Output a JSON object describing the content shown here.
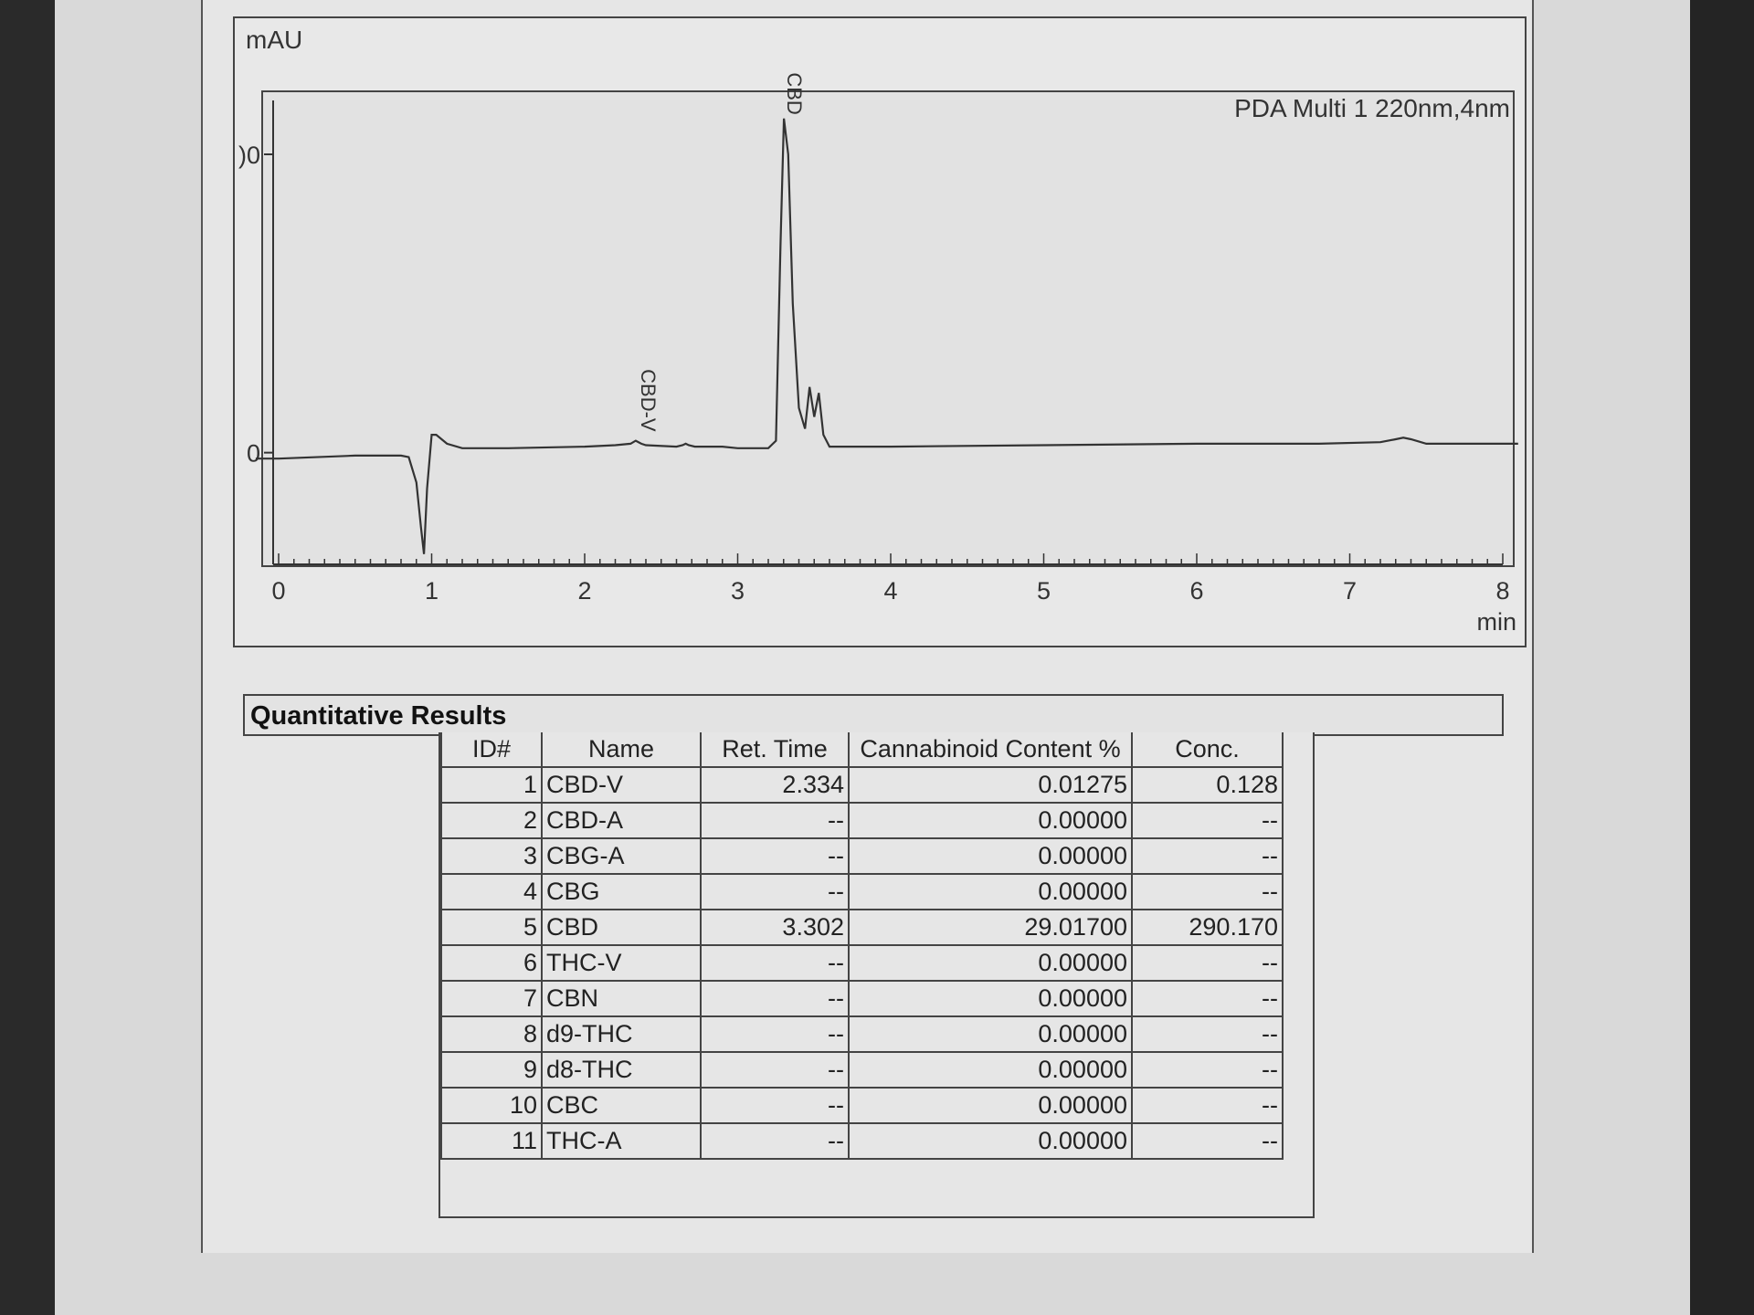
{
  "chart_data": {
    "type": "line",
    "ylabel": "mAU",
    "xlabel": "min",
    "legend": "PDA Multi 1 220nm,4nm",
    "x_ticks": [
      "0",
      "1",
      "2",
      "3",
      "4",
      "5",
      "6",
      "7",
      "8"
    ],
    "y_ticks": [
      ")0",
      "0"
    ],
    "xlim": [
      0,
      8
    ],
    "ylim": [
      -0.35,
      1.15
    ],
    "y_tick_values": [
      1,
      0
    ],
    "series": [
      {
        "x": [
          -0.15,
          0.0,
          0.5,
          0.8,
          0.85,
          0.9,
          0.93,
          0.95,
          0.97,
          1.0,
          1.03,
          1.1,
          1.2,
          1.5,
          2.0,
          2.2,
          2.3,
          2.334,
          2.37,
          2.4,
          2.6,
          2.64,
          2.66,
          2.68,
          2.72,
          2.75,
          2.9,
          3.0,
          3.2,
          3.25,
          3.28,
          3.302,
          3.33,
          3.36,
          3.4,
          3.44,
          3.47,
          3.5,
          3.53,
          3.56,
          3.6,
          4.0,
          5.0,
          6.0,
          6.8,
          7.2,
          7.3,
          7.35,
          7.4,
          7.5,
          8.0,
          8.1
        ],
        "y": [
          -0.02,
          -0.02,
          -0.01,
          -0.01,
          -0.015,
          -0.1,
          -0.25,
          -0.34,
          -0.12,
          0.06,
          0.06,
          0.03,
          0.015,
          0.015,
          0.02,
          0.025,
          0.03,
          0.04,
          0.03,
          0.025,
          0.02,
          0.025,
          0.03,
          0.025,
          0.02,
          0.02,
          0.02,
          0.015,
          0.015,
          0.04,
          0.7,
          1.12,
          1.0,
          0.5,
          0.15,
          0.08,
          0.22,
          0.12,
          0.2,
          0.06,
          0.02,
          0.02,
          0.025,
          0.03,
          0.03,
          0.035,
          0.045,
          0.05,
          0.045,
          0.03,
          0.03,
          0.03
        ]
      }
    ],
    "annotations": [
      {
        "text": "CBD-V",
        "x": 2.334
      },
      {
        "text": "CBD",
        "x": 3.302
      }
    ]
  },
  "results": {
    "title": "Quantitative Results",
    "headers": [
      "ID#",
      "Name",
      "Ret. Time",
      "Cannabinoid Content %",
      "Conc."
    ],
    "rows": [
      [
        "1",
        "CBD-V",
        "2.334",
        "0.01275",
        "0.128"
      ],
      [
        "2",
        "CBD-A",
        "--",
        "0.00000",
        "--"
      ],
      [
        "3",
        "CBG-A",
        "--",
        "0.00000",
        "--"
      ],
      [
        "4",
        "CBG",
        "--",
        "0.00000",
        "--"
      ],
      [
        "5",
        "CBD",
        "3.302",
        "29.01700",
        "290.170"
      ],
      [
        "6",
        "THC-V",
        "--",
        "0.00000",
        "--"
      ],
      [
        "7",
        "CBN",
        "--",
        "0.00000",
        "--"
      ],
      [
        "8",
        "d9-THC",
        "--",
        "0.00000",
        "--"
      ],
      [
        "9",
        "d8-THC",
        "--",
        "0.00000",
        "--"
      ],
      [
        "10",
        "CBC",
        "--",
        "0.00000",
        "--"
      ],
      [
        "11",
        "THC-A",
        "--",
        "0.00000",
        "--"
      ]
    ]
  }
}
